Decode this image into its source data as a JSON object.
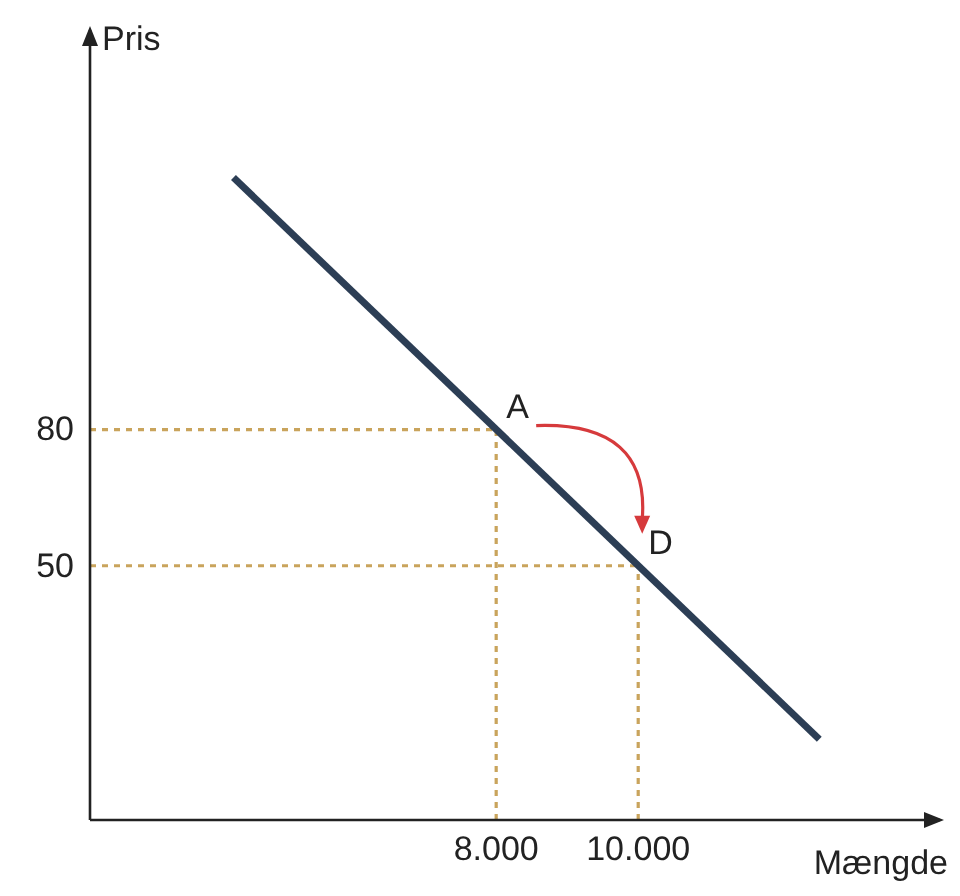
{
  "chart_data": {
    "type": "line",
    "xlabel": "Mængde",
    "ylabel": "Pris",
    "xlim": [
      2280,
      14250
    ],
    "ylim": [
      -6,
      168
    ],
    "xticks": [
      {
        "value": 8000,
        "label": "8.000"
      },
      {
        "value": 10000,
        "label": "10.000"
      }
    ],
    "yticks": [
      50,
      80
    ],
    "series": [
      {
        "x": [
          4300,
          12550
        ],
        "values": [
          135.5,
          11.8
        ],
        "color": "#2c3e55"
      }
    ],
    "ref_lines": [
      {
        "axis": "y",
        "value": 80,
        "color": "#c9a45c",
        "line_style": "dotted"
      },
      {
        "axis": "y",
        "value": 50,
        "color": "#c9a45c",
        "line_style": "dotted"
      },
      {
        "axis": "x",
        "value": 8000,
        "color": "#c9a45c",
        "line_style": "dotted"
      },
      {
        "axis": "x",
        "value": 10000,
        "color": "#c9a45c",
        "line_style": "dotted"
      }
    ],
    "annotations": [
      {
        "text": "A",
        "x": 8000,
        "y": 80
      },
      {
        "text": "D",
        "x": 10000,
        "y": 50
      }
    ]
  }
}
